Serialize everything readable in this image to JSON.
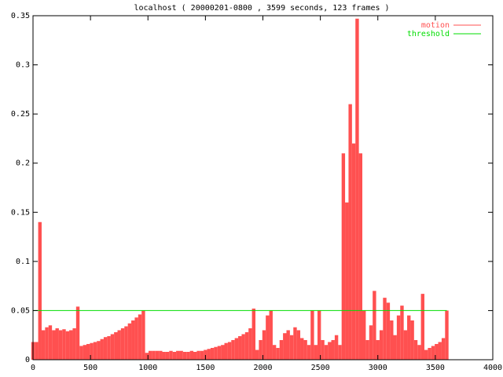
{
  "chart_data": {
    "type": "impulses",
    "title": "localhost ( 20000201-0800 , 3599 seconds, 123 frames )",
    "xlim": [
      0,
      4000
    ],
    "xticks": [
      0,
      500,
      1000,
      1500,
      2000,
      2500,
      3000,
      3500,
      4000
    ],
    "ylim": [
      0,
      0.35
    ],
    "yticks": [
      0,
      0.05,
      0.1,
      0.15,
      0.2,
      0.25,
      0.3,
      0.35
    ],
    "legend": "top-right",
    "series": [
      {
        "name": "motion",
        "color": "#ff5050",
        "style": "impulses",
        "x": [
          0,
          30,
          60,
          90,
          120,
          150,
          180,
          210,
          240,
          270,
          300,
          330,
          360,
          390,
          420,
          450,
          480,
          510,
          540,
          570,
          600,
          630,
          660,
          690,
          720,
          750,
          780,
          810,
          840,
          870,
          900,
          930,
          960,
          990,
          1020,
          1050,
          1080,
          1110,
          1140,
          1170,
          1200,
          1230,
          1260,
          1290,
          1320,
          1350,
          1380,
          1410,
          1440,
          1470,
          1500,
          1530,
          1560,
          1590,
          1620,
          1650,
          1680,
          1710,
          1740,
          1770,
          1800,
          1830,
          1860,
          1890,
          1920,
          1950,
          1980,
          2010,
          2040,
          2070,
          2100,
          2130,
          2160,
          2190,
          2220,
          2250,
          2280,
          2310,
          2340,
          2370,
          2400,
          2430,
          2460,
          2490,
          2520,
          2550,
          2580,
          2610,
          2640,
          2670,
          2700,
          2730,
          2760,
          2790,
          2820,
          2850,
          2880,
          2910,
          2940,
          2970,
          3000,
          3030,
          3060,
          3090,
          3120,
          3150,
          3180,
          3210,
          3240,
          3270,
          3300,
          3330,
          3360,
          3390,
          3420,
          3450,
          3480,
          3510,
          3540,
          3570,
          3600
        ],
        "values": [
          0.018,
          0.018,
          0.14,
          0.03,
          0.033,
          0.035,
          0.03,
          0.032,
          0.03,
          0.031,
          0.029,
          0.03,
          0.032,
          0.054,
          0.014,
          0.015,
          0.016,
          0.017,
          0.018,
          0.019,
          0.021,
          0.023,
          0.024,
          0.026,
          0.028,
          0.03,
          0.032,
          0.034,
          0.037,
          0.04,
          0.043,
          0.046,
          0.05,
          0.007,
          0.009,
          0.009,
          0.009,
          0.009,
          0.008,
          0.008,
          0.009,
          0.008,
          0.009,
          0.009,
          0.008,
          0.008,
          0.009,
          0.008,
          0.009,
          0.009,
          0.01,
          0.011,
          0.012,
          0.013,
          0.014,
          0.015,
          0.017,
          0.018,
          0.02,
          0.022,
          0.024,
          0.026,
          0.028,
          0.032,
          0.052,
          0.01,
          0.02,
          0.03,
          0.045,
          0.05,
          0.015,
          0.012,
          0.02,
          0.027,
          0.03,
          0.025,
          0.033,
          0.03,
          0.022,
          0.02,
          0.015,
          0.05,
          0.015,
          0.05,
          0.02,
          0.015,
          0.018,
          0.02,
          0.025,
          0.015,
          0.21,
          0.16,
          0.26,
          0.22,
          0.347,
          0.21,
          0.05,
          0.02,
          0.035,
          0.07,
          0.02,
          0.03,
          0.063,
          0.058,
          0.04,
          0.025,
          0.045,
          0.055,
          0.03,
          0.045,
          0.04,
          0.02,
          0.015,
          0.067,
          0.01,
          0.012,
          0.014,
          0.016,
          0.018,
          0.022,
          0.05
        ]
      },
      {
        "name": "threshold",
        "color": "#00dd00",
        "style": "line",
        "x": [
          0,
          3600
        ],
        "values": [
          0.05,
          0.05
        ]
      }
    ]
  }
}
